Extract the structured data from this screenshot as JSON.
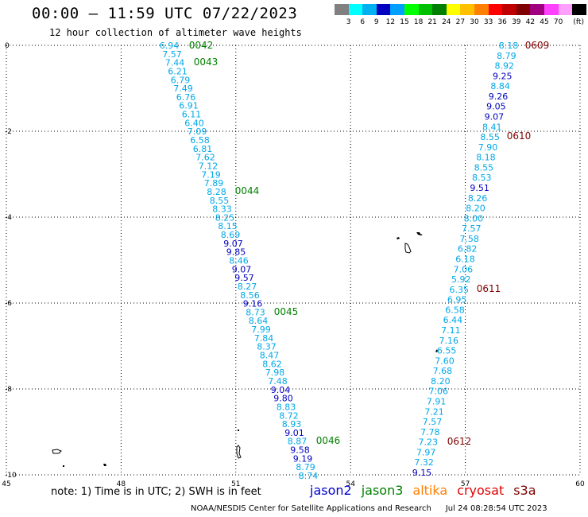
{
  "header": {
    "title": "00:00 – 11:59 UTC 07/22/2023",
    "subtitle": "12 hour collection of altimeter wave heights"
  },
  "colorbar": {
    "colors": [
      "#808080",
      "#00ffff",
      "#00b0f0",
      "#0000c0",
      "#00a0ff",
      "#00ff00",
      "#00c000",
      "#008000",
      "#ffff00",
      "#ffc000",
      "#ff8000",
      "#ff0000",
      "#c00000",
      "#800000",
      "#a00080",
      "#ff40ff",
      "#ffa0ff",
      "#000000"
    ],
    "labels": [
      "3",
      "6",
      "9",
      "12",
      "15",
      "18",
      "21",
      "24",
      "27",
      "30",
      "33",
      "36",
      "39",
      "42",
      "45",
      "70"
    ],
    "unit": "(ft)"
  },
  "axes": {
    "x_ticks": [
      "45",
      "48",
      "51",
      "54",
      "57",
      "60"
    ],
    "y_ticks": [
      "0",
      "-2",
      "-4",
      "-6",
      "-8",
      "-10"
    ]
  },
  "chart_data": {
    "type": "scatter",
    "x_range": [
      45,
      60
    ],
    "y_range": [
      -10,
      0
    ],
    "grid": true,
    "tracks": [
      {
        "values": [
          "6.94",
          "7.57",
          "7.44",
          "6.21",
          "6.79",
          "7.49",
          "6.76",
          "6.91",
          "6.11",
          "6.40",
          "7.09",
          "6.58",
          "6.81",
          "7.62",
          "7.12",
          "7.19",
          "7.89",
          "8.28",
          "8.55",
          "8.33",
          "8.25",
          "8.15",
          "8.69",
          "9.07",
          "9.85",
          "8.46",
          "9.07",
          "9.57",
          "8.27",
          "8.56",
          "9.16",
          "8.73",
          "8.64",
          "7.99",
          "7.84",
          "8.37",
          "8.47",
          "8.62",
          "7.98",
          "7.48",
          "9.04",
          "9.80",
          "8.83",
          "8.72",
          "8.93",
          "9.01",
          "8.87",
          "9.58",
          "9.19",
          "8.79",
          "8.74"
        ]
      },
      {
        "values": [
          "8.18",
          "8.79",
          "8.92",
          "9.25",
          "8.84",
          "9.26",
          "9.05",
          "9.07",
          "8.41",
          "8.55",
          "7.90",
          "8.18",
          "8.55",
          "8.53",
          "9.51",
          "8.26",
          "8.20",
          "8.00",
          "7.57",
          "7.58",
          "6.82",
          "6.18",
          "7.06",
          "5.92",
          "6.35",
          "6.95",
          "6.58",
          "6.44",
          "7.11",
          "7.16",
          "6.55",
          "7.60",
          "7.68",
          "8.20",
          "7.06",
          "7.91",
          "7.21",
          "7.57",
          "7.78",
          "7.23",
          "7.97",
          "7.32",
          "9.15"
        ]
      }
    ],
    "passes": [
      {
        "label": "0042",
        "color": "#008000"
      },
      {
        "label": "0043",
        "color": "#008000"
      },
      {
        "label": "0044",
        "color": "#008000"
      },
      {
        "label": "0045",
        "color": "#008000"
      },
      {
        "label": "0046",
        "color": "#008000"
      },
      {
        "label": "0609",
        "color": "#800000"
      },
      {
        "label": "0610",
        "color": "#800000"
      },
      {
        "label": "0611",
        "color": "#800000"
      },
      {
        "label": "0612",
        "color": "#800000"
      }
    ]
  },
  "footer": {
    "note": "note: 1) Time is in UTC; 2) SWH is in feet",
    "legend": [
      {
        "label": "jason2",
        "color": "#0000d0"
      },
      {
        "label": "jason3",
        "color": "#008000"
      },
      {
        "label": "altika",
        "color": "#ff8000"
      },
      {
        "label": "cryosat",
        "color": "#e00000"
      },
      {
        "label": "s3a",
        "color": "#800000"
      }
    ],
    "credit": "NOAA/NESDIS Center for Satellite Applications and Research",
    "timestamp": "Jul 24 08:28:54 UTC 2023"
  }
}
